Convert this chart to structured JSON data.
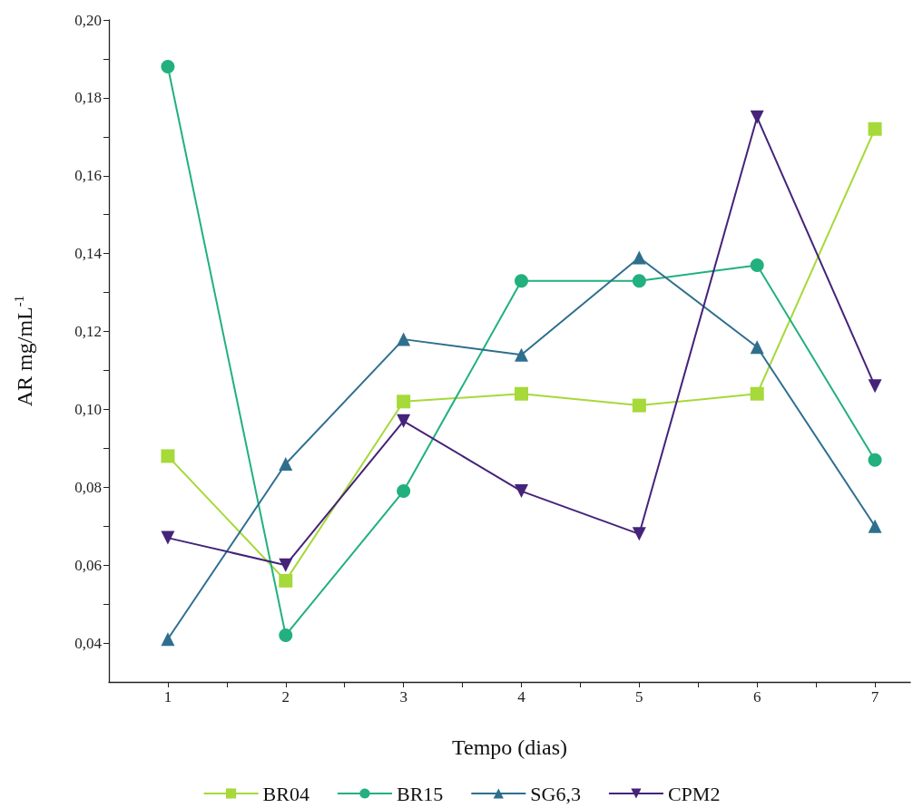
{
  "chart_data": {
    "type": "line",
    "xlabel": "Tempo (dias)",
    "ylabel": "AR mg/mL$^{-1}$",
    "xlim": [
      0.5,
      7.3
    ],
    "xticks": [
      1,
      2,
      3,
      4,
      5,
      6,
      7,
      {
        "value": 1.5,
        "label": null
      },
      {
        "value": 2.5,
        "label": null
      },
      {
        "value": 3.5,
        "label": null
      },
      {
        "value": 4.5,
        "label": null
      },
      {
        "value": 5.5,
        "label": null
      },
      {
        "value": 6.5,
        "label": null
      }
    ],
    "ylim": [
      0.03,
      0.2
    ],
    "yticks": [
      {
        "value": 0.04,
        "label": "0,04"
      },
      {
        "value": 0.06,
        "label": "0,06"
      },
      {
        "value": 0.08,
        "label": "0,08"
      },
      {
        "value": 0.1,
        "label": "0,10"
      },
      {
        "value": 0.12,
        "label": "0,12"
      },
      {
        "value": 0.14,
        "label": "0,14"
      },
      {
        "value": 0.16,
        "label": "0,16"
      },
      {
        "value": 0.18,
        "label": "0,18"
      },
      {
        "value": 0.2,
        "label": "0,20"
      },
      {
        "value": 0.05,
        "label": null
      },
      {
        "value": 0.07,
        "label": null
      },
      {
        "value": 0.09,
        "label": null
      },
      {
        "value": 0.11,
        "label": null
      },
      {
        "value": 0.13,
        "label": null
      },
      {
        "value": 0.15,
        "label": null
      },
      {
        "value": 0.17,
        "label": null
      },
      {
        "value": 0.19,
        "label": null
      }
    ],
    "x": [
      1,
      2,
      3,
      4,
      5,
      6,
      7
    ],
    "grid": false,
    "legend": "bottom",
    "line_style": "solid",
    "series": [
      {
        "name": "BR04",
        "color": "#a6d93a",
        "marker": "square",
        "values": [
          0.088,
          0.056,
          0.102,
          0.104,
          0.101,
          0.104,
          0.172
        ]
      },
      {
        "name": "BR15",
        "color": "#22b07f",
        "marker": "circle",
        "values": [
          0.188,
          0.042,
          0.079,
          0.133,
          0.133,
          0.137,
          0.087
        ]
      },
      {
        "name": "SG6,3",
        "color": "#2f6f8e",
        "marker": "triangle",
        "values": [
          0.041,
          0.086,
          0.118,
          0.114,
          0.139,
          0.116,
          0.07
        ]
      },
      {
        "name": "CPM2",
        "color": "#45237a",
        "marker": "triangle-down",
        "values": [
          0.067,
          0.06,
          0.097,
          0.079,
          0.068,
          0.175,
          0.106
        ]
      }
    ]
  }
}
